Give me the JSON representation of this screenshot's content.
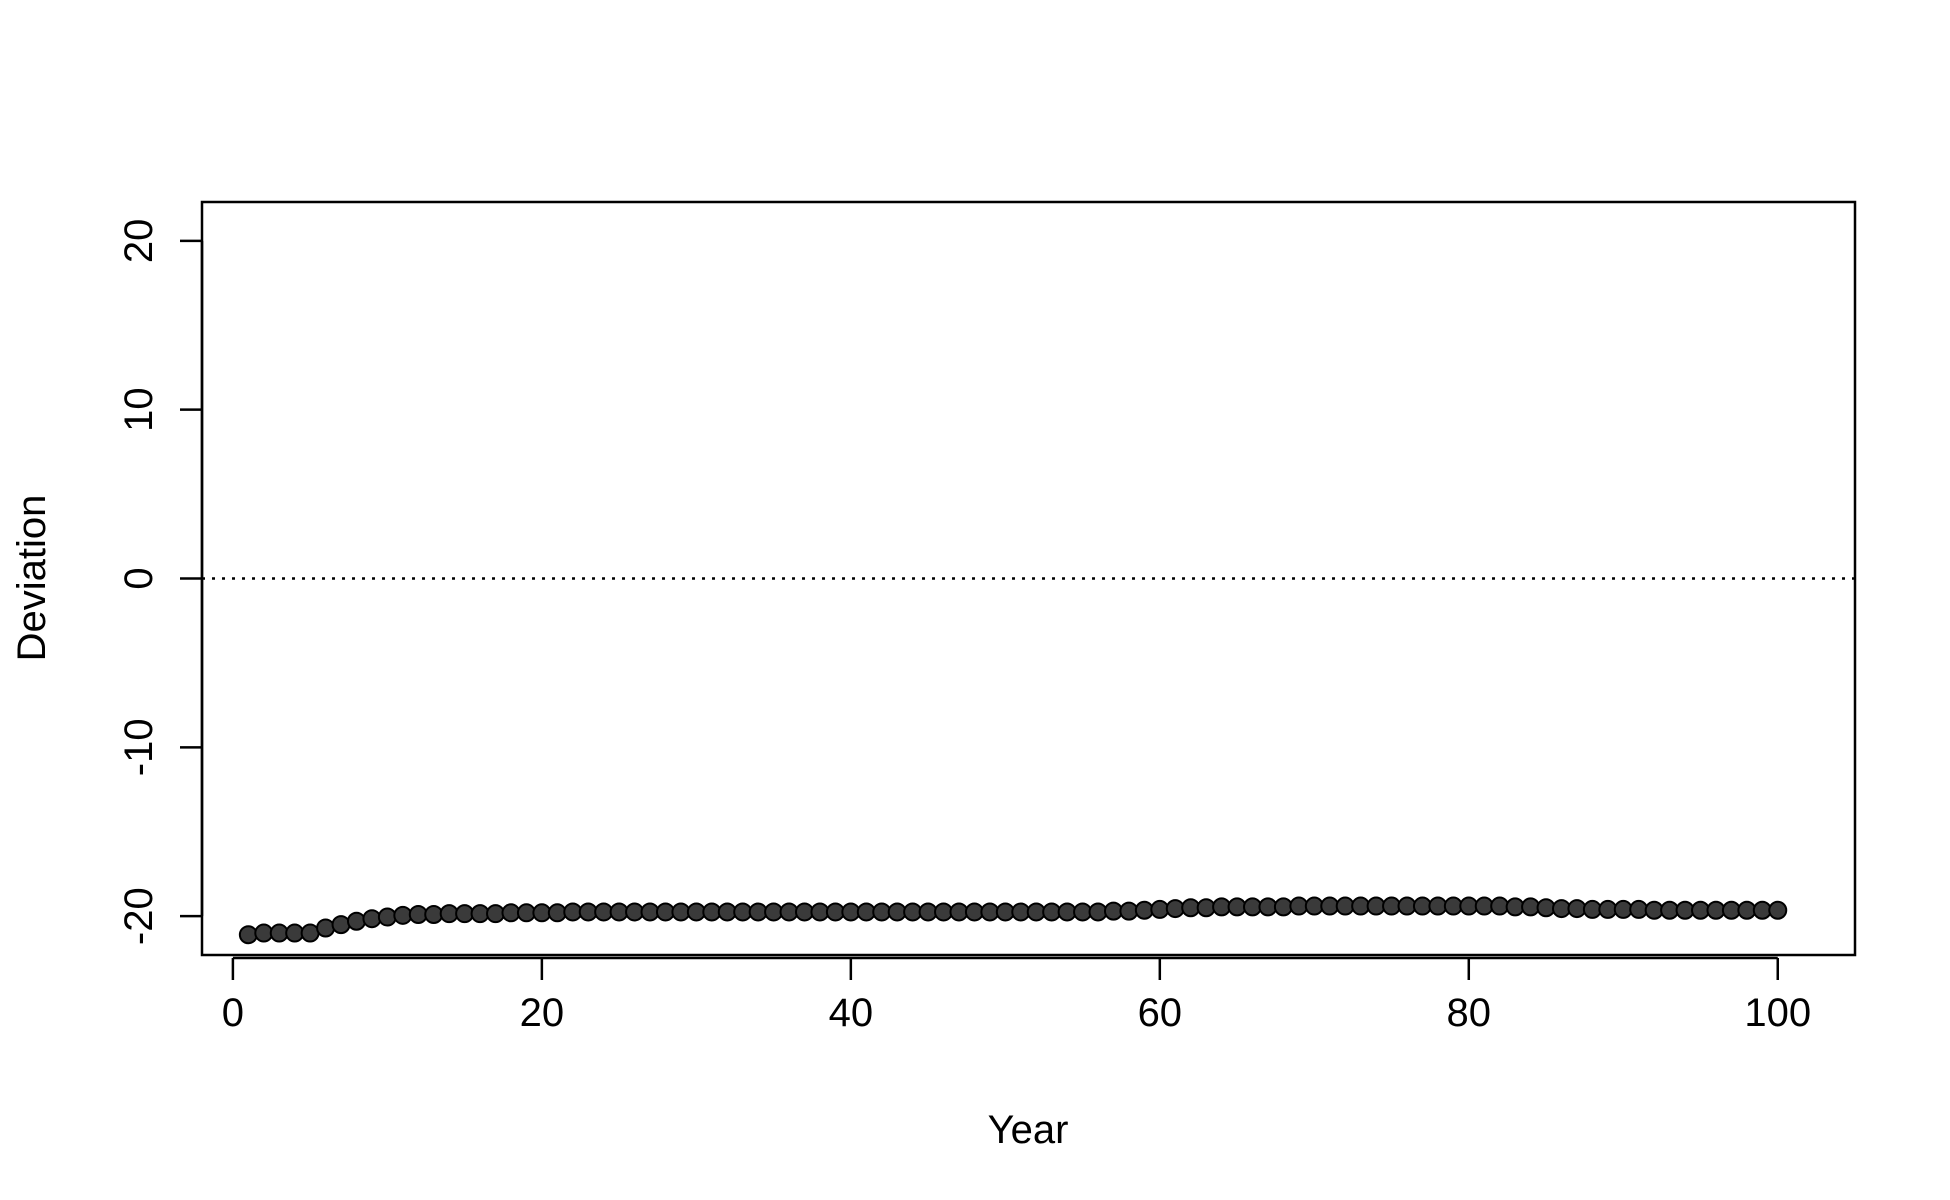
{
  "chart_data": {
    "type": "scatter",
    "title": "",
    "xlabel": "Year",
    "ylabel": "Deviation",
    "xlim": [
      -2,
      105
    ],
    "ylim": [
      -22.3,
      22.3
    ],
    "xticks": [
      0,
      20,
      40,
      60,
      80,
      100
    ],
    "xtick_labels": [
      "0",
      "20",
      "40",
      "60",
      "80",
      "100"
    ],
    "yticks": [
      -20,
      -10,
      0,
      10,
      20
    ],
    "ytick_labels": [
      "-20",
      "-10",
      "0",
      "10",
      "20"
    ],
    "reference_line": {
      "y": 0,
      "style": "dotted"
    },
    "grid": false,
    "legend": "none",
    "point_color": "#3a3a3a",
    "point_edge_color": "#000000",
    "x": [
      1,
      2,
      3,
      4,
      5,
      6,
      7,
      8,
      9,
      10,
      11,
      12,
      13,
      14,
      15,
      16,
      17,
      18,
      19,
      20,
      21,
      22,
      23,
      24,
      25,
      26,
      27,
      28,
      29,
      30,
      31,
      32,
      33,
      34,
      35,
      36,
      37,
      38,
      39,
      40,
      41,
      42,
      43,
      44,
      45,
      46,
      47,
      48,
      49,
      50,
      51,
      52,
      53,
      54,
      55,
      56,
      57,
      58,
      59,
      60,
      61,
      62,
      63,
      64,
      65,
      66,
      67,
      68,
      69,
      70,
      71,
      72,
      73,
      74,
      75,
      76,
      77,
      78,
      79,
      80,
      81,
      82,
      83,
      84,
      85,
      86,
      87,
      88,
      89,
      90,
      91,
      92,
      93,
      94,
      95,
      96,
      97,
      98,
      99,
      100
    ],
    "y": [
      -21.1,
      -21.0,
      -21.0,
      -21.0,
      -21.0,
      -20.7,
      -20.5,
      -20.3,
      -20.15,
      -20.05,
      -19.95,
      -19.9,
      -19.9,
      -19.85,
      -19.85,
      -19.85,
      -19.85,
      -19.8,
      -19.8,
      -19.8,
      -19.8,
      -19.75,
      -19.75,
      -19.75,
      -19.75,
      -19.75,
      -19.75,
      -19.75,
      -19.75,
      -19.75,
      -19.75,
      -19.75,
      -19.75,
      -19.75,
      -19.75,
      -19.75,
      -19.75,
      -19.75,
      -19.75,
      -19.75,
      -19.75,
      -19.75,
      -19.75,
      -19.75,
      -19.75,
      -19.75,
      -19.75,
      -19.75,
      -19.75,
      -19.75,
      -19.75,
      -19.75,
      -19.75,
      -19.75,
      -19.75,
      -19.75,
      -19.7,
      -19.7,
      -19.65,
      -19.6,
      -19.55,
      -19.5,
      -19.5,
      -19.45,
      -19.45,
      -19.45,
      -19.45,
      -19.45,
      -19.4,
      -19.4,
      -19.4,
      -19.4,
      -19.4,
      -19.4,
      -19.4,
      -19.4,
      -19.4,
      -19.4,
      -19.4,
      -19.4,
      -19.4,
      -19.4,
      -19.45,
      -19.45,
      -19.5,
      -19.55,
      -19.55,
      -19.6,
      -19.6,
      -19.6,
      -19.6,
      -19.65,
      -19.65,
      -19.65,
      -19.65,
      -19.65,
      -19.65,
      -19.65,
      -19.65,
      -19.65
    ]
  }
}
